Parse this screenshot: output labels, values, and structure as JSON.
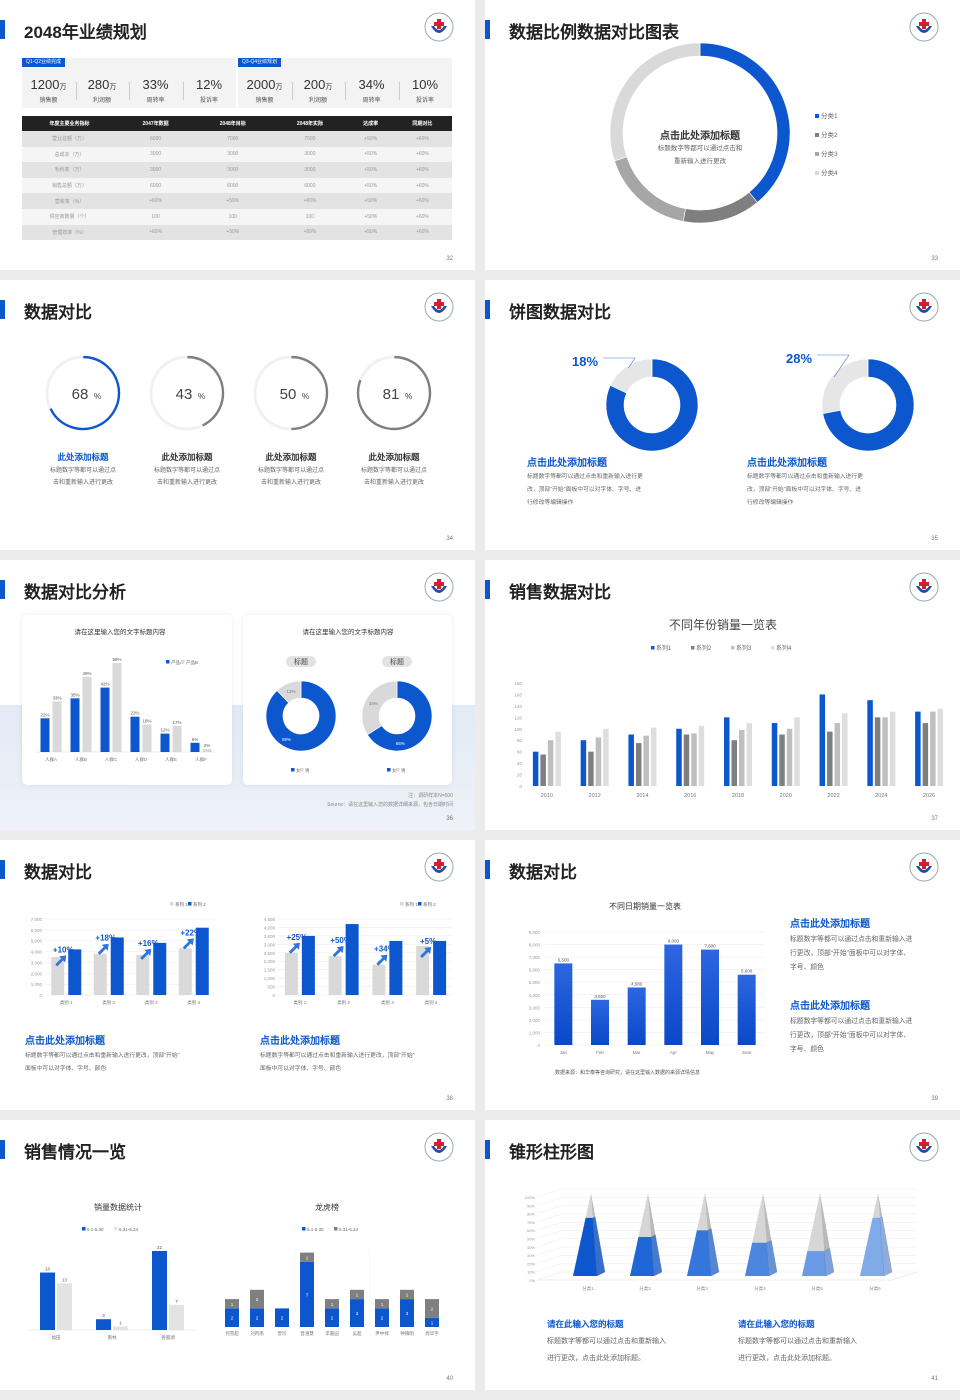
{
  "colors": {
    "blue": "#0c57cd",
    "dark_gray": "#7f7f7f",
    "mid_gray": "#a6a6a6",
    "light_gray": "#d9d9d9",
    "accent": "#0c57cd"
  },
  "slides": {
    "s32": {
      "title": "2048年业绩规划",
      "page": "32",
      "left_box": {
        "tag": "Q1-Q2业绩完成",
        "stats": [
          {
            "value": "1200",
            "unit": "万",
            "label": "销售额"
          },
          {
            "value": "280",
            "unit": "万",
            "label": "利润额"
          },
          {
            "value": "33%",
            "unit": "",
            "label": "周转率"
          },
          {
            "value": "12%",
            "unit": "",
            "label": "投诉率"
          }
        ]
      },
      "right_box": {
        "tag": "Q3-Q4业绩规划",
        "stats": [
          {
            "value": "2000",
            "unit": "万",
            "label": "销售额"
          },
          {
            "value": "200",
            "unit": "万",
            "label": "利润额"
          },
          {
            "value": "34%",
            "unit": "",
            "label": "周转率"
          },
          {
            "value": "10%",
            "unit": "",
            "label": "投诉率"
          }
        ]
      },
      "table": {
        "headers": [
          "年度主要业务指标",
          "2047年数据",
          "2048年目标",
          "2048年实际",
          "达成率",
          "同期对比"
        ],
        "rows": [
          [
            "营业总额（万）",
            "6000",
            "7000",
            "7000",
            "+50%",
            "+60%"
          ],
          [
            "总成本（万）",
            "3000",
            "3000",
            "3000",
            "+50%",
            "+60%"
          ],
          [
            "毛利率（万）",
            "3000",
            "3000",
            "3000",
            "+50%",
            "+60%"
          ],
          [
            "销售总额（万）",
            "6000",
            "6000",
            "6000",
            "+50%",
            "+60%"
          ],
          [
            "营收率（%）",
            "+60%",
            "+50%",
            "+60%",
            "+50%",
            "+60%"
          ],
          [
            "供应商数量（个）",
            "100",
            "100",
            "100",
            "+50%",
            "+60%"
          ],
          [
            "管理效率（%）",
            "+60%",
            "+50%",
            "+60%",
            "+50%",
            "+60%"
          ]
        ]
      }
    },
    "s33": {
      "title": "数据比例数据对比图表",
      "page": "33",
      "center_title": "点击此处添加标题",
      "center_lines": [
        "标题数字等都可以通过点击和",
        "重新输入进行更改"
      ]
    },
    "s34": {
      "title": "数据对比",
      "page": "34",
      "items": [
        {
          "title": "此处添加标题",
          "lines": [
            "标题数字等都可以通过点",
            "击和重新输入进行更改"
          ]
        },
        {
          "title": "此处添加标题",
          "lines": [
            "标题数字等都可以通过点",
            "击和重新输入进行更改"
          ]
        },
        {
          "title": "此处添加标题",
          "lines": [
            "标题数字等都可以通过点",
            "击和重新输入进行更改"
          ]
        },
        {
          "title": "此处添加标题",
          "lines": [
            "标题数字等都可以通过点",
            "击和重新输入进行更改"
          ]
        }
      ]
    },
    "s35": {
      "title": "饼图数据对比",
      "page": "35",
      "items": [
        {
          "title": "点击此处添加标题",
          "lines": [
            "标题数字等都可以通过点击和重新输入进行更",
            "改，顶部“开始”面板中可以对字体、字号、进",
            "行修改等编辑操作"
          ]
        },
        {
          "title": "点击此处添加标题",
          "lines": [
            "标题数字等都可以通过点击和重新输入进行更",
            "改，顶部“开始”面板中可以对字体、字号、进",
            "行修改等编辑操作"
          ]
        }
      ]
    },
    "s36": {
      "title": "数据对比分析",
      "page": "36",
      "card_titles": [
        "请在这里输入您的文字标题内容",
        "请在这里输入您的文字标题内容"
      ],
      "tags": [
        "标题",
        "标题"
      ],
      "note": "注：调研样本N=500",
      "source": "Source：请在这里输入您的数据详细来源，包含日期时间"
    },
    "s37": {
      "title": "销售数据对比",
      "page": "37"
    },
    "s38": {
      "title": "数据对比",
      "page": "38",
      "items": [
        {
          "title": "点击此处添加标题",
          "lines": [
            "标题数字等都可以通过点击和重新输入进行更改，顶部“开始”",
            "面板中可以对字体、字号、颜色"
          ]
        },
        {
          "title": "点击此处添加标题",
          "lines": [
            "标题数字等都可以通过点击和重新输入进行更改，顶部“开始”",
            "面板中可以对字体、字号、颜色"
          ]
        }
      ]
    },
    "s39": {
      "title": "数据对比",
      "page": "39",
      "source": "数据来源：和华泰等咨询研究，请在这里输入数据的来源详情信息",
      "items": [
        {
          "title": "点击此处添加标题",
          "lines": [
            "标题数字等都可以通过点击和重新输入进",
            "行更改，顶部“开始”面板中可以对字体、",
            "字号、颜色"
          ]
        },
        {
          "title": "点击此处添加标题",
          "lines": [
            "标题数字等都可以通过点击和重新输入进",
            "行更改，顶部“开始”面板中可以对字体、",
            "字号、颜色"
          ]
        }
      ]
    },
    "s40": {
      "title": "销售情况一览",
      "page": "40"
    },
    "s41": {
      "title": "锥形柱形图",
      "page": "41",
      "items": [
        {
          "title": "请在此输入您的标题",
          "lines": [
            "标题数字等都可以通过点击和重新输入",
            "进行更改，点击此处添加标题。"
          ]
        },
        {
          "title": "请在此输入您的标题",
          "lines": [
            "标题数字等都可以通过点击和重新输入",
            "进行更改，点击此处添加标题。"
          ]
        }
      ]
    }
  },
  "chart_data": [
    {
      "id": "s33-donut",
      "type": "pie",
      "donut": true,
      "categories": [
        "分类1",
        "分类2",
        "分类3",
        "分类4"
      ],
      "values": [
        39,
        14,
        17,
        30
      ],
      "colors": [
        "#0c57cd",
        "#7f7f7f",
        "#a6a6a6",
        "#d9d9d9"
      ],
      "legend": "right"
    },
    {
      "id": "s34-gauges",
      "type": "pie",
      "donut": true,
      "values": [
        68,
        43,
        50,
        81
      ],
      "unit": "%",
      "colors": [
        "#0c57cd",
        "#7f7f7f",
        "#7f7f7f",
        "#7f7f7f"
      ]
    },
    {
      "id": "s35-donuts",
      "type": "pie",
      "donut": true,
      "values": [
        18,
        28
      ],
      "labels": [
        "18%",
        "28%"
      ],
      "colors": [
        "#0c57cd",
        "#e6e6e6"
      ]
    },
    {
      "id": "s36-bar",
      "type": "bar",
      "title": "请在这里输入您的文字标题内容",
      "categories": [
        "人群A",
        "人群B",
        "人群C",
        "人群D",
        "人群E",
        "人群F"
      ],
      "series": [
        {
          "name": "产品A",
          "values": [
            22,
            35,
            42,
            23,
            12,
            6
          ],
          "color": "#0c57cd"
        },
        {
          "name": "产品B",
          "values": [
            33,
            49,
            58,
            18,
            17,
            2
          ],
          "color": "#d9d9d9"
        }
      ],
      "value_suffix": "%",
      "ylim": [
        0,
        60
      ],
      "grid": false,
      "legend": "top-right"
    },
    {
      "id": "s36-donuts",
      "type": "pie",
      "donut": true,
      "legend_items": [
        "女",
        "男"
      ],
      "charts": [
        {
          "values": [
            88,
            12
          ],
          "labels": [
            "88%",
            "12%"
          ]
        },
        {
          "values": [
            66,
            34
          ],
          "labels": [
            "66%",
            "34%"
          ]
        }
      ],
      "colors": [
        "#0c57cd",
        "#d9d9d9"
      ]
    },
    {
      "id": "s37-bar",
      "type": "bar",
      "title": "不同年份销量一览表",
      "categories": [
        "2010",
        "2012",
        "2014",
        "2016",
        "2018",
        "2020",
        "2022",
        "2024",
        "2026"
      ],
      "series": [
        {
          "name": "系列1",
          "values": [
            60,
            80,
            90,
            100,
            120,
            110,
            160,
            150,
            130
          ],
          "color": "#0c57cd"
        },
        {
          "name": "系列2",
          "values": [
            55,
            60,
            75,
            90,
            80,
            90,
            95,
            120,
            110
          ],
          "color": "#7f7f7f"
        },
        {
          "name": "系列3",
          "values": [
            80,
            85,
            88,
            92,
            98,
            100,
            110,
            120,
            130
          ],
          "color": "#bfbfbf"
        },
        {
          "name": "系列4",
          "values": [
            95,
            100,
            102,
            105,
            110,
            120,
            127,
            130,
            135
          ],
          "color": "#dedede"
        }
      ],
      "ylim": [
        0,
        180
      ],
      "yticks": [
        0,
        20,
        40,
        60,
        80,
        100,
        120,
        140,
        160,
        180
      ],
      "grid": false,
      "legend": "top"
    },
    {
      "id": "s38-bar-left",
      "type": "bar",
      "categories": [
        "类别 1",
        "类别 2",
        "类别 3",
        "类别 4"
      ],
      "series": [
        {
          "name": "系列 1",
          "values": [
            3500,
            3800,
            3700,
            4300
          ],
          "color": "#d9d9d9"
        },
        {
          "name": "系列 2",
          "values": [
            4200,
            5300,
            4800,
            6200
          ],
          "color": "#0c57cd"
        }
      ],
      "annotations": [
        "+10%",
        "+18%",
        "+16%",
        "+22%"
      ],
      "ylim": [
        0,
        7000
      ],
      "yticks": [
        0,
        1000,
        2000,
        3000,
        4000,
        5000,
        6000,
        7000
      ],
      "grid": true,
      "legend": "top-right"
    },
    {
      "id": "s38-bar-right",
      "type": "bar",
      "categories": [
        "类别 1",
        "类别 2",
        "类别 3",
        "类别 4"
      ],
      "series": [
        {
          "name": "系列 1",
          "values": [
            2500,
            2300,
            1800,
            2900
          ],
          "color": "#d9d9d9"
        },
        {
          "name": "系列 2",
          "values": [
            3500,
            4200,
            3200,
            3200
          ],
          "color": "#0c57cd"
        }
      ],
      "annotations": [
        "+25%",
        "+50%",
        "+34%",
        "+5%"
      ],
      "ylim": [
        0,
        4500
      ],
      "yticks": [
        0,
        500,
        1000,
        1500,
        2000,
        2500,
        3000,
        3500,
        4000,
        4500
      ],
      "grid": true,
      "legend": "top-right"
    },
    {
      "id": "s39-bar",
      "type": "bar",
      "title": "不同日期销量一览表",
      "categories": [
        "Jan",
        "Feb",
        "Mar",
        "Apr",
        "May",
        "June"
      ],
      "series": [
        {
          "values": [
            6500,
            3600,
            4580,
            8000,
            7600,
            5600
          ],
          "labels": [
            "6,500",
            "3,600",
            "4,580",
            "8,000",
            "7,600",
            "5,600"
          ],
          "color": "#0c57cd"
        }
      ],
      "ylim": [
        0,
        9000
      ],
      "yticks": [
        0,
        1000,
        2000,
        3000,
        4000,
        5000,
        6000,
        7000,
        8000,
        9000
      ],
      "grid": true
    },
    {
      "id": "s40-bar-left",
      "type": "bar",
      "title": "销量数据统计",
      "categories": [
        "福田",
        "南林",
        "香蜜湖"
      ],
      "series": [
        {
          "name": "5.1-5.30",
          "values": [
            16,
            3,
            22
          ],
          "color": "#0c57cd"
        },
        {
          "name": "5.31-6.24",
          "values": [
            13,
            1,
            7
          ],
          "color": "#e3e3e3"
        }
      ],
      "ylim": [
        0,
        22
      ],
      "grid": false,
      "legend": "top"
    },
    {
      "id": "s40-bar-right",
      "type": "bar",
      "stacked": true,
      "title": "龙虎榜",
      "categories": [
        "何雪超",
        "刘丙南",
        "曾珍",
        "曾涵慧",
        "李嘉园",
        "吴超",
        "尹中禄",
        "钟镇明",
        "周华宇"
      ],
      "series": [
        {
          "name": "5.1-5.30",
          "values": [
            2,
            2,
            2,
            7,
            2,
            3,
            2,
            3,
            1
          ],
          "color": "#0c57cd"
        },
        {
          "name": "5.31-6.24",
          "values": [
            1,
            2,
            0,
            1,
            1,
            1,
            1,
            1,
            2
          ],
          "color": "#7f7f7f"
        }
      ],
      "ylim": [
        0,
        8
      ],
      "grid": false,
      "legend": "top"
    },
    {
      "id": "s41-pyramid",
      "type": "bar",
      "subtype": "3d-pyramid",
      "categories": [
        "分类1",
        "分类2",
        "分类3",
        "分类4",
        "分类5",
        "分类6"
      ],
      "values": [
        70,
        47,
        55,
        40,
        30,
        70
      ],
      "value_suffix": "%",
      "ylim": [
        0,
        100
      ],
      "yticks": [
        0,
        10,
        20,
        30,
        40,
        50,
        60,
        70,
        80,
        90,
        100
      ],
      "grid": true,
      "colors": [
        "#0c57cd",
        "#1f66d6",
        "#3476dc",
        "#4d86de",
        "#6a9be4",
        "#80aae8"
      ]
    }
  ]
}
